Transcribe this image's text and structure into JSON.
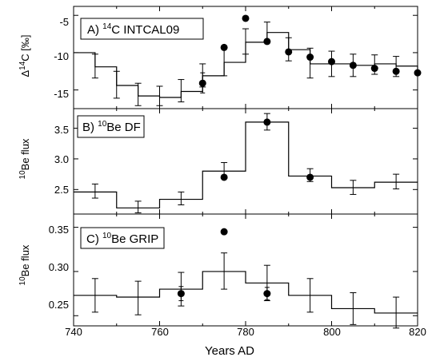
{
  "chart_data": {
    "type": "composite",
    "xlabel": "Years AD",
    "xlim": [
      740,
      820
    ],
    "xticks": [
      740,
      760,
      780,
      800,
      820
    ],
    "panels": [
      {
        "label_prefix": "A) ",
        "label_sup": "14",
        "label_rest": "C INTCAL09",
        "ylabel_prefix": "Δ",
        "ylabel_sup": "14",
        "ylabel_rest": "C [‰]",
        "ylim": [
          -17.5,
          -3.8
        ],
        "yticks": [
          -15,
          -10,
          -5
        ],
        "step_edges": [
          740,
          745,
          750,
          755,
          760,
          765,
          770,
          775,
          780,
          785,
          790,
          795,
          800,
          805,
          810,
          815,
          820
        ],
        "step_values": [
          -10.0,
          -11.9,
          -14.4,
          -15.8,
          -16.0,
          -15.2,
          -13.1,
          -11.3,
          -8.6,
          -7.3,
          -9.6,
          -11.5,
          -11.5,
          -11.7,
          -11.5,
          -11.8,
          -12.5
        ],
        "step_error_x": [
          745,
          750,
          755,
          760,
          765,
          770,
          775,
          780,
          785,
          790,
          795,
          800,
          805,
          810,
          815
        ],
        "step_error_lo": [
          -13.4,
          -16.1,
          -17.1,
          -17.1,
          -16.6,
          -14.6,
          -13.1,
          -10.2,
          -8.7,
          -11.1,
          -13.4,
          -13.2,
          -13.2,
          -12.9,
          -13.2
        ],
        "step_error_hi": [
          -10.2,
          -12.5,
          -14.1,
          -14.5,
          -13.6,
          -11.5,
          -9.4,
          -6.8,
          -5.9,
          -8.0,
          -9.4,
          -9.8,
          -10.2,
          -10.3,
          -10.5
        ],
        "points": [
          {
            "x": 770,
            "y": -14.1,
            "lo": -15.4,
            "hi": -12.7
          },
          {
            "x": 775,
            "y": -9.3,
            "lo": null,
            "hi": null
          },
          {
            "x": 780,
            "y": -5.4,
            "lo": null,
            "hi": null
          },
          {
            "x": 785,
            "y": -8.5,
            "lo": null,
            "hi": null
          },
          {
            "x": 790,
            "y": -9.9,
            "lo": null,
            "hi": null
          },
          {
            "x": 795,
            "y": -10.6,
            "lo": null,
            "hi": null
          },
          {
            "x": 800,
            "y": -11.2,
            "lo": null,
            "hi": null
          },
          {
            "x": 805,
            "y": -11.7,
            "lo": null,
            "hi": null
          },
          {
            "x": 810,
            "y": -12.1,
            "lo": null,
            "hi": null
          },
          {
            "x": 815,
            "y": -12.5,
            "lo": null,
            "hi": null
          },
          {
            "x": 820,
            "y": -12.7,
            "lo": null,
            "hi": null
          }
        ]
      },
      {
        "label_prefix": "B) ",
        "label_sup": "10",
        "label_rest": "Be DF",
        "ylabel_prefix": "",
        "ylabel_sup": "10",
        "ylabel_rest": "Be flux",
        "ylim": [
          2.1,
          3.82
        ],
        "yticks": [
          2.5,
          3.0,
          3.5
        ],
        "ytick_labels": [
          "2.5",
          "3.0",
          "3.5"
        ],
        "step_edges": [
          740,
          750,
          760,
          770,
          780,
          790,
          800,
          810,
          820
        ],
        "step_values": [
          2.46,
          2.2,
          2.34,
          2.8,
          3.6,
          2.72,
          2.53,
          2.62
        ],
        "step_error_x": [
          745,
          755,
          765,
          775,
          785,
          795,
          805,
          815
        ],
        "step_error_lo": [
          2.36,
          2.12,
          2.25,
          2.68,
          3.47,
          2.63,
          2.42,
          2.51
        ],
        "step_error_hi": [
          2.59,
          2.31,
          2.46,
          2.94,
          3.74,
          2.84,
          2.65,
          2.75
        ],
        "points": [
          {
            "x": 775,
            "y": 2.7,
            "lo": null,
            "hi": null
          },
          {
            "x": 785,
            "y": 3.6,
            "lo": null,
            "hi": null
          },
          {
            "x": 795,
            "y": 2.7,
            "lo": null,
            "hi": null
          }
        ]
      },
      {
        "label_prefix": "C) ",
        "label_sup": "10",
        "label_rest": "Be GRIP",
        "ylabel_prefix": "",
        "ylabel_sup": "10",
        "ylabel_rest": "Be flux",
        "ylim": [
          0.2385,
          0.365
        ],
        "yticks": [
          0.25,
          0.3,
          0.35
        ],
        "ytick_labels": [
          "0.25",
          "0.30",
          "0.35"
        ],
        "step_edges": [
          740,
          750,
          760,
          770,
          780,
          790,
          800,
          810,
          820
        ],
        "step_values": [
          0.273,
          0.271,
          0.28,
          0.3,
          0.287,
          0.273,
          0.258,
          0.253
        ],
        "step_error_x": [
          745,
          755,
          765,
          775,
          785,
          795,
          805,
          815
        ],
        "step_error_lo": [
          0.254,
          0.251,
          0.261,
          0.28,
          0.267,
          0.254,
          0.24,
          0.236
        ],
        "step_error_hi": [
          0.292,
          0.289,
          0.299,
          0.321,
          0.307,
          0.292,
          0.276,
          0.271
        ],
        "points": [
          {
            "x": 765,
            "y": 0.275,
            "lo": 0.267,
            "hi": 0.283
          },
          {
            "x": 775,
            "y": 0.345,
            "lo": null,
            "hi": null
          },
          {
            "x": 785,
            "y": 0.275,
            "lo": 0.268,
            "hi": 0.282
          }
        ]
      }
    ]
  }
}
